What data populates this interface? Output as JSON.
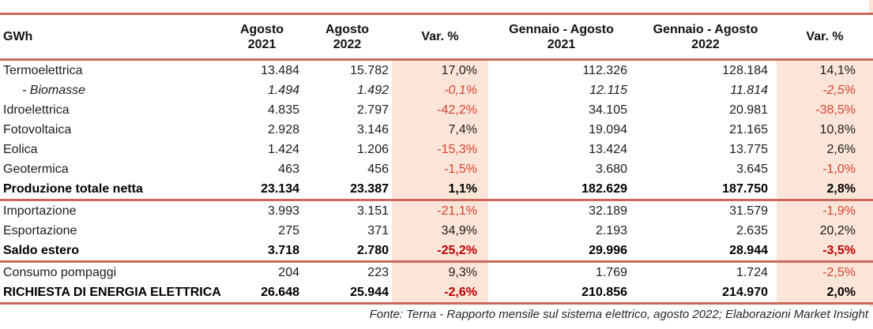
{
  "colors": {
    "accent_line": "#C96A5C",
    "column_shade": "#FBE5D8",
    "negative_text": "#D8432F",
    "negative_text_bold": "#C00000",
    "body_text": "#1C1C1C"
  },
  "chart_data": {
    "type": "table",
    "unit": "GWh",
    "columns": [
      "GWh",
      "Agosto 2021",
      "Agosto 2022",
      "Var. %",
      "Gennaio - Agosto 2021",
      "Gennaio - Agosto 2022",
      "Var. %"
    ],
    "header_lines": [
      {
        "line1": "GWh",
        "line2": ""
      },
      {
        "line1": "Agosto",
        "line2": "2021"
      },
      {
        "line1": "Agosto",
        "line2": "2022"
      },
      {
        "line1": "Var. %",
        "line2": ""
      },
      {
        "line1": "Gennaio - Agosto",
        "line2": "2021"
      },
      {
        "line1": "Gennaio - Agosto",
        "line2": "2022"
      },
      {
        "line1": "Var. %",
        "line2": ""
      }
    ],
    "rows": [
      {
        "label": "Termoelettrica",
        "values": [
          "13.484",
          "15.782",
          "17,0%",
          "112.326",
          "128.184",
          "14,1%"
        ],
        "bold": false,
        "italic": false,
        "section_end": false
      },
      {
        "label": "- Biomasse",
        "values": [
          "1.494",
          "1.492",
          "-0,1%",
          "12.115",
          "11.814",
          "-2,5%"
        ],
        "bold": false,
        "italic": true,
        "section_end": false
      },
      {
        "label": "Idroelettrica",
        "values": [
          "4.835",
          "2.797",
          "-42,2%",
          "34.105",
          "20.981",
          "-38,5%"
        ],
        "bold": false,
        "italic": false,
        "section_end": false
      },
      {
        "label": "Fotovoltaica",
        "values": [
          "2.928",
          "3.146",
          "7,4%",
          "19.094",
          "21.165",
          "10,8%"
        ],
        "bold": false,
        "italic": false,
        "section_end": false
      },
      {
        "label": "Eolica",
        "values": [
          "1.424",
          "1.206",
          "-15,3%",
          "13.424",
          "13.775",
          "2,6%"
        ],
        "bold": false,
        "italic": false,
        "section_end": false
      },
      {
        "label": "Geotermica",
        "values": [
          "463",
          "456",
          "-1,5%",
          "3.680",
          "3.645",
          "-1,0%"
        ],
        "bold": false,
        "italic": false,
        "section_end": false
      },
      {
        "label": "Produzione totale netta",
        "values": [
          "23.134",
          "23.387",
          "1,1%",
          "182.629",
          "187.750",
          "2,8%"
        ],
        "bold": true,
        "italic": false,
        "section_end": true
      },
      {
        "label": "Importazione",
        "values": [
          "3.993",
          "3.151",
          "-21,1%",
          "32.189",
          "31.579",
          "-1,9%"
        ],
        "bold": false,
        "italic": false,
        "section_end": false
      },
      {
        "label": "Esportazione",
        "values": [
          "275",
          "371",
          "34,9%",
          "2.193",
          "2.635",
          "20,2%"
        ],
        "bold": false,
        "italic": false,
        "section_end": false
      },
      {
        "label": "Saldo estero",
        "values": [
          "3.718",
          "2.780",
          "-25,2%",
          "29.996",
          "28.944",
          "-3,5%"
        ],
        "bold": true,
        "italic": false,
        "section_end": true
      },
      {
        "label": "Consumo pompaggi",
        "values": [
          "204",
          "223",
          "9,3%",
          "1.769",
          "1.724",
          "-2,5%"
        ],
        "bold": false,
        "italic": false,
        "section_end": false
      },
      {
        "label": "RICHIESTA DI ENERGIA ELETTRICA",
        "values": [
          "26.648",
          "25.944",
          "-2,6%",
          "210.856",
          "214.970",
          "2,0%"
        ],
        "bold": true,
        "italic": false,
        "section_end": true
      }
    ]
  },
  "footer": {
    "source_text": "Fonte: Terna - Rapporto mensile sul sistema elettrico, agosto 2022; Elaborazioni Market Insight"
  }
}
